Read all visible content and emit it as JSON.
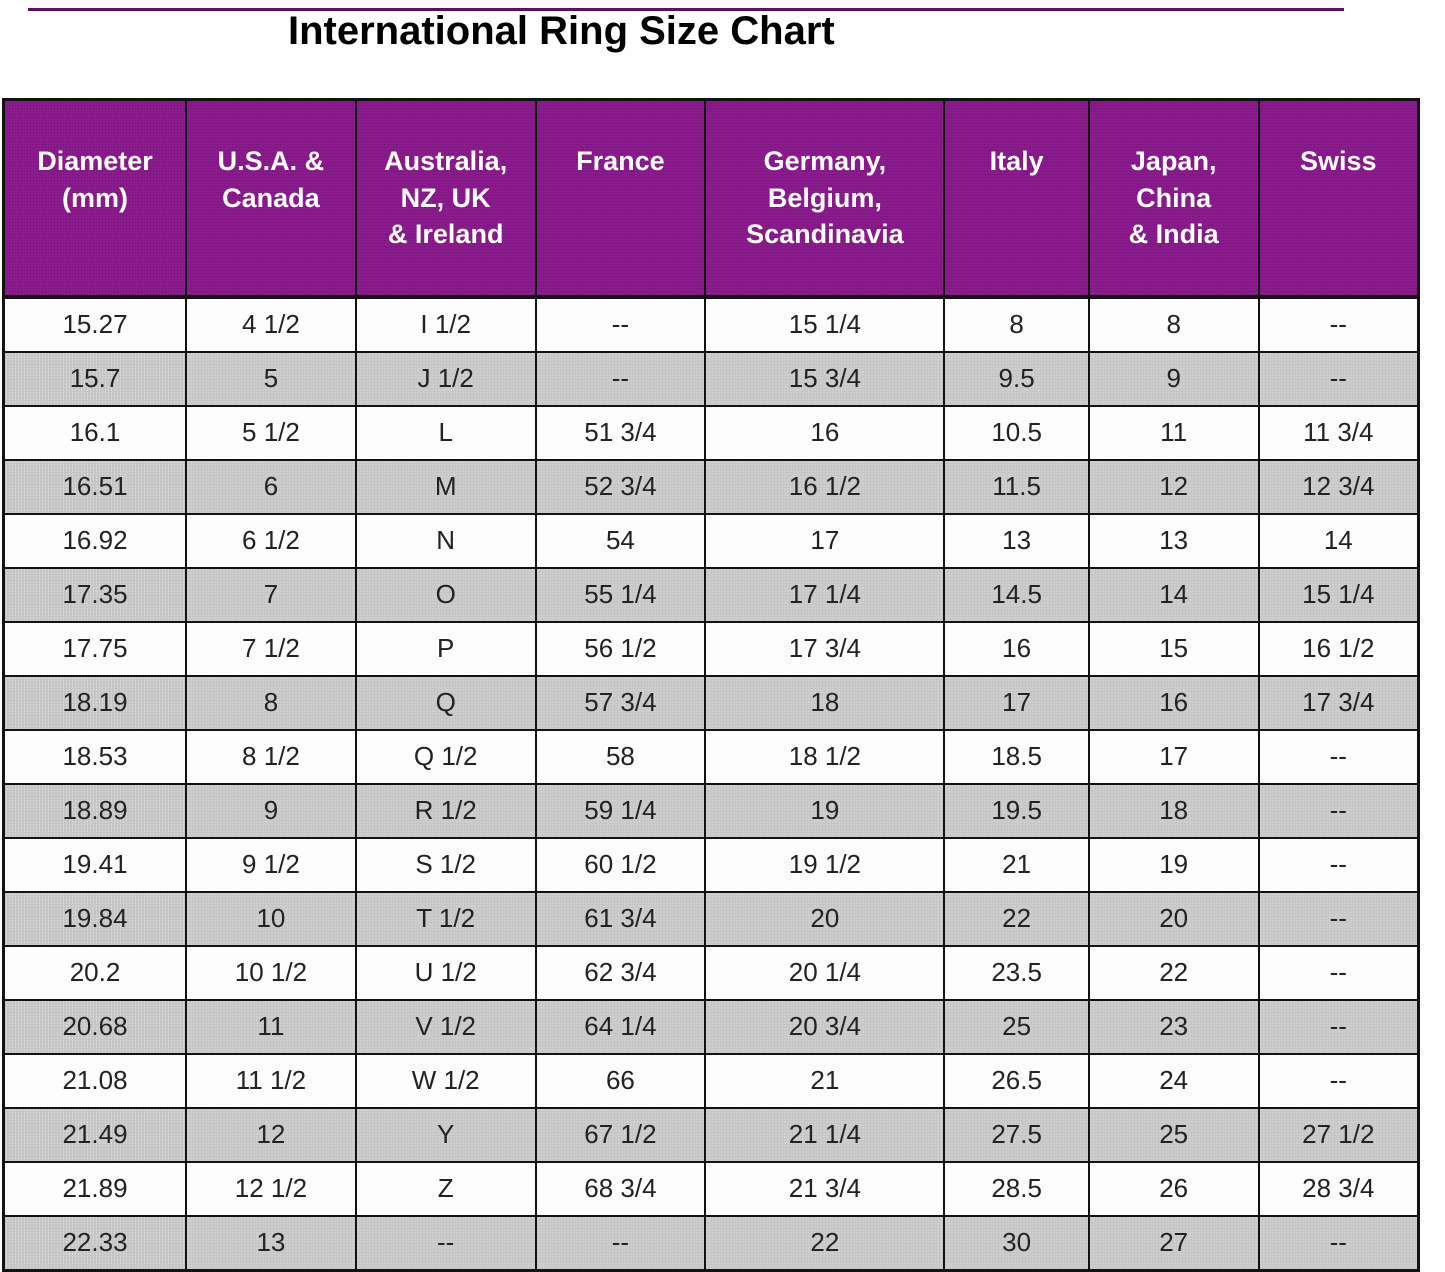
{
  "title": "International Ring Size Chart",
  "colors": {
    "header_bg": "#8a1b8c",
    "header_text": "#ffffff",
    "alt_row_bg": "#c6c6c6",
    "row_bg": "#fdfdfd",
    "cell_text": "#222222",
    "border": "#121212",
    "title_text": "#000000",
    "top_strip": "#5e1060"
  },
  "chart_data": {
    "type": "table",
    "title": "International Ring Size Chart",
    "grid": true,
    "legend_position": "none",
    "row_striping": "alternate rows shaded dotted grey starting from the second data row",
    "columns": [
      {
        "key": "diameter-mm",
        "label": "Diameter\n(mm)",
        "width_pct": 12.9
      },
      {
        "key": "usa-canada",
        "label": "U.S.A. &\nCanada",
        "width_pct": 12.0
      },
      {
        "key": "australia-nz-uk-ireland",
        "label": "Australia,\nNZ, UK\n& Ireland",
        "width_pct": 12.7
      },
      {
        "key": "france",
        "label": "France",
        "width_pct": 12.0
      },
      {
        "key": "germany-belgium-scandinavia",
        "label": "Germany,\nBelgium,\nScandinavia",
        "width_pct": 16.9
      },
      {
        "key": "italy",
        "label": "Italy",
        "width_pct": 10.2
      },
      {
        "key": "japan-china-india",
        "label": "Japan,\nChina\n& India",
        "width_pct": 12.0
      },
      {
        "key": "swiss",
        "label": "Swiss",
        "width_pct": 11.3
      }
    ],
    "rows": [
      [
        "15.27",
        "4 1/2",
        "I 1/2",
        "--",
        "15 1/4",
        "8",
        "8",
        "--"
      ],
      [
        "15.7",
        "5",
        "J 1/2",
        "--",
        "15 3/4",
        "9.5",
        "9",
        "--"
      ],
      [
        "16.1",
        "5 1/2",
        "L",
        "51 3/4",
        "16",
        "10.5",
        "11",
        "11 3/4"
      ],
      [
        "16.51",
        "6",
        "M",
        "52 3/4",
        "16 1/2",
        "11.5",
        "12",
        "12 3/4"
      ],
      [
        "16.92",
        "6 1/2",
        "N",
        "54",
        "17",
        "13",
        "13",
        "14"
      ],
      [
        "17.35",
        "7",
        "O",
        "55 1/4",
        "17 1/4",
        "14.5",
        "14",
        "15 1/4"
      ],
      [
        "17.75",
        "7 1/2",
        "P",
        "56 1/2",
        "17 3/4",
        "16",
        "15",
        "16 1/2"
      ],
      [
        "18.19",
        "8",
        "Q",
        "57 3/4",
        "18",
        "17",
        "16",
        "17 3/4"
      ],
      [
        "18.53",
        "8 1/2",
        "Q 1/2",
        "58",
        "18 1/2",
        "18.5",
        "17",
        "--"
      ],
      [
        "18.89",
        "9",
        "R 1/2",
        "59 1/4",
        "19",
        "19.5",
        "18",
        "--"
      ],
      [
        "19.41",
        "9 1/2",
        "S 1/2",
        "60 1/2",
        "19 1/2",
        "21",
        "19",
        "--"
      ],
      [
        "19.84",
        "10",
        "T 1/2",
        "61 3/4",
        "20",
        "22",
        "20",
        "--"
      ],
      [
        "20.2",
        "10 1/2",
        "U 1/2",
        "62 3/4",
        "20 1/4",
        "23.5",
        "22",
        "--"
      ],
      [
        "20.68",
        "11",
        "V 1/2",
        "64 1/4",
        "20 3/4",
        "25",
        "23",
        "--"
      ],
      [
        "21.08",
        "11 1/2",
        "W 1/2",
        "66",
        "21",
        "26.5",
        "24",
        "--"
      ],
      [
        "21.49",
        "12",
        "Y",
        "67 1/2",
        "21 1/4",
        "27.5",
        "25",
        "27 1/2"
      ],
      [
        "21.89",
        "12 1/2",
        "Z",
        "68 3/4",
        "21 3/4",
        "28.5",
        "26",
        "28 3/4"
      ],
      [
        "22.33",
        "13",
        "--",
        "--",
        "22",
        "30",
        "27",
        "--"
      ]
    ]
  }
}
